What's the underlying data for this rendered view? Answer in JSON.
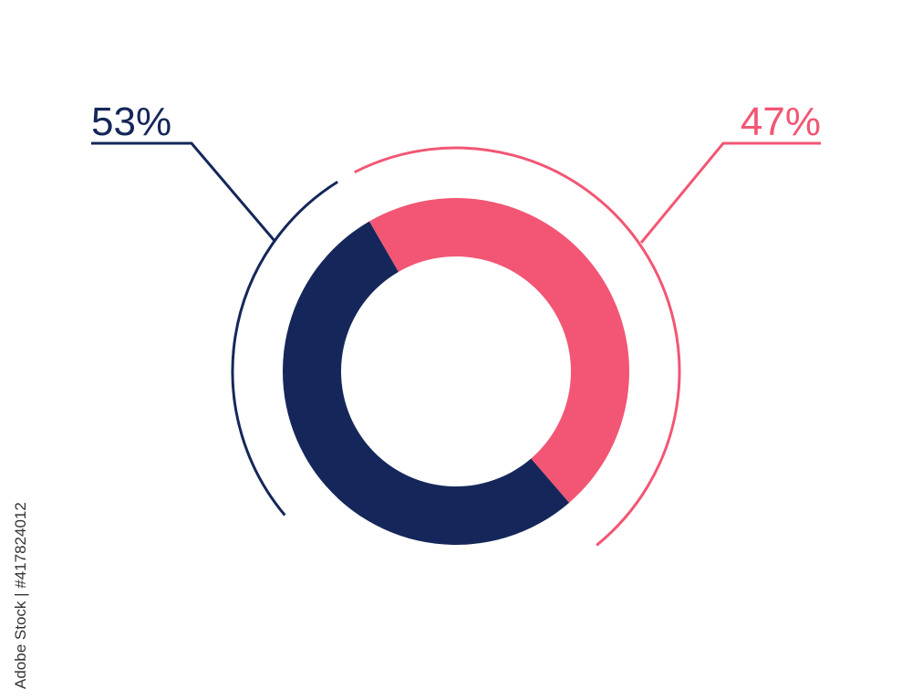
{
  "chart_data": {
    "type": "donut",
    "values": [
      53,
      47
    ],
    "value_labels": [
      "53%",
      "47%"
    ],
    "colors": [
      "#15275a",
      "#f25674"
    ]
  },
  "watermark": "Adobe Stock | #417824012"
}
